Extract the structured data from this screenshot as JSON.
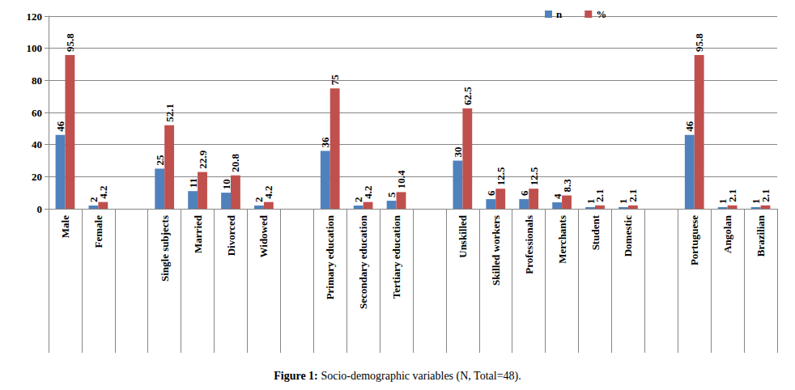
{
  "chart_data": {
    "type": "bar",
    "title": "Figure 1: Socio-demographic variables (N, Total=48).",
    "categories": [
      "Male",
      "Female",
      null,
      "Single subjects",
      "Married",
      "Divorced",
      "Widowed",
      null,
      "Primary education",
      "Secondary education",
      "Tertiary education",
      null,
      "Unskilled",
      "Skilled workers",
      "Professionals",
      "Merchants",
      "Student",
      "Domestic",
      null,
      "Portuguese",
      "Angolan",
      "Brazilian"
    ],
    "series": [
      {
        "name": "n",
        "color": "#4f81bd",
        "values": [
          46,
          2,
          null,
          25,
          11,
          10,
          2,
          null,
          36,
          2,
          5,
          null,
          30,
          6,
          6,
          4,
          1,
          1,
          null,
          46,
          1,
          1
        ]
      },
      {
        "name": "%",
        "color": "#c0504d",
        "values": [
          95.8,
          4.2,
          null,
          52.1,
          22.9,
          20.8,
          4.2,
          null,
          75,
          4.2,
          10.4,
          null,
          62.5,
          12.5,
          12.5,
          8.3,
          2.1,
          2.1,
          null,
          95.8,
          2.1,
          2.1
        ]
      }
    ],
    "ylim": [
      0,
      120
    ],
    "yticks": [
      0,
      20,
      40,
      60,
      80,
      100,
      120
    ],
    "grid": true,
    "legend": "top",
    "data_labels": true
  }
}
